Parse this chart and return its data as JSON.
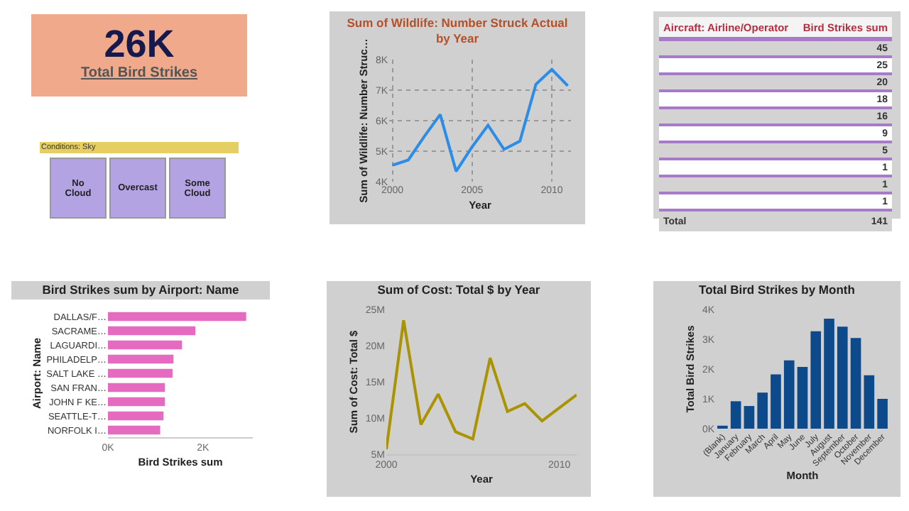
{
  "chart_data": [
    {
      "type": "other",
      "title": "Total Bird Strikes",
      "annotations": [
        "26K"
      ]
    },
    {
      "type": "line",
      "title": "Sum of Wildlife: Number Struck Actual by Year",
      "xlabel": "Year",
      "ylabel": "Sum of Wildlife: Number Struc…",
      "x": [
        2000,
        2001,
        2002,
        2003,
        2004,
        2005,
        2006,
        2007,
        2008,
        2009,
        2010,
        2011
      ],
      "values": [
        4540,
        4710,
        5480,
        6200,
        4340,
        5140,
        5850,
        5060,
        5330,
        7190,
        7680,
        7140
      ],
      "color": "#2b8de8",
      "xlim": [
        1999.8,
        2011.2
      ],
      "xticks": [
        2000,
        2005,
        2010
      ],
      "ylim": [
        4000,
        8000
      ],
      "yticks": [
        {
          "value": 4000,
          "label": "4K"
        },
        {
          "value": 5000,
          "label": "5K"
        },
        {
          "value": 6000,
          "label": "6K"
        },
        {
          "value": 7000,
          "label": "7K"
        },
        {
          "value": 8000,
          "label": "8K"
        }
      ],
      "grid": true
    },
    {
      "type": "other",
      "categories": [
        null,
        null,
        null,
        null,
        null,
        null,
        null,
        null,
        null,
        null
      ],
      "values": [
        45,
        25,
        20,
        18,
        16,
        9,
        5,
        1,
        1,
        1
      ],
      "data_labels": true,
      "annotations": [
        "Aircraft: Airline/Operator",
        "Bird Strikes sum",
        "Total",
        "141"
      ]
    },
    {
      "type": "other",
      "title": "Conditions: Sky",
      "annotations": [
        "No Cloud",
        "Overcast",
        "Some Cloud"
      ]
    },
    {
      "type": "bar",
      "orientation": "horizontal",
      "title": "Bird Strikes sum by Airport: Name",
      "xlabel": "Bird Strikes sum",
      "ylabel": "Airport: Name",
      "categories": [
        "DALLAS/F…",
        "SACRAME…",
        "LAGUARDI…",
        "PHILADELP…",
        "SALT LAKE …",
        "SAN FRAN…",
        "JOHN F KE…",
        "SEATTLE-T…",
        "NORFOLK I…"
      ],
      "values": [
        2910,
        1840,
        1560,
        1380,
        1360,
        1200,
        1200,
        1170,
        1100
      ],
      "color": "#e46bbf",
      "xlim": [
        0,
        3050
      ],
      "xticks": [
        {
          "value": 0,
          "label": "0K"
        },
        {
          "value": 2000,
          "label": "2K"
        }
      ]
    },
    {
      "type": "line",
      "title": "Sum of Cost: Total $ by Year",
      "xlabel": "Year",
      "ylabel": "Sum of Cost: Total $",
      "x": [
        2000,
        2001,
        2002,
        2003,
        2004,
        2005,
        2006,
        2007,
        2008,
        2009,
        2010,
        2011
      ],
      "values": [
        5700000,
        23500000,
        9100000,
        13300000,
        8100000,
        7100000,
        18300000,
        10900000,
        12000000,
        9600000,
        11400000,
        13200000
      ],
      "color": "#ab9300",
      "xlim": [
        2000,
        2011
      ],
      "xticks": [
        2000,
        2010
      ],
      "ylim": [
        5000000,
        25000000
      ],
      "yticks": [
        {
          "value": 5000000,
          "label": "5M"
        },
        {
          "value": 10000000,
          "label": "10M"
        },
        {
          "value": 15000000,
          "label": "15M"
        },
        {
          "value": 20000000,
          "label": "20M"
        },
        {
          "value": 25000000,
          "label": "25M"
        }
      ]
    },
    {
      "type": "bar",
      "title": "Total Bird Strikes by Month",
      "xlabel": "Month",
      "ylabel": "Total Bird Strikes",
      "categories": [
        "(Blank)",
        "January",
        "February",
        "March",
        "April",
        "May",
        "June",
        "July",
        "August",
        "September",
        "October",
        "November",
        "December"
      ],
      "values": [
        100,
        920,
        760,
        1210,
        1820,
        2290,
        2070,
        3270,
        3690,
        3420,
        3040,
        1790,
        1000
      ],
      "color": "#0d4a8b",
      "ylim": [
        0,
        4000
      ],
      "yticks": [
        {
          "value": 0,
          "label": "0K"
        },
        {
          "value": 1000,
          "label": "1K"
        },
        {
          "value": 2000,
          "label": "2K"
        },
        {
          "value": 3000,
          "label": "3K"
        },
        {
          "value": 4000,
          "label": "4K"
        }
      ]
    }
  ]
}
